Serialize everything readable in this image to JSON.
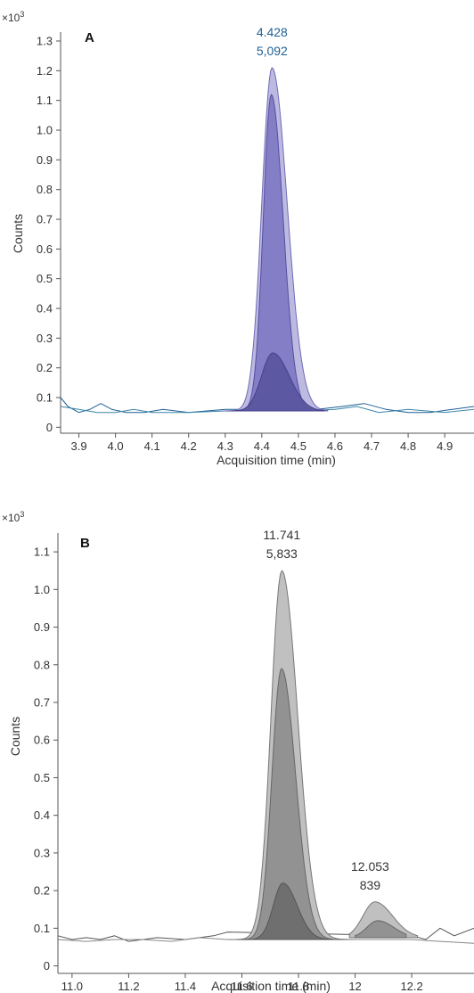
{
  "chart_data": [
    {
      "type": "line",
      "panel_label": "A",
      "multiplier": "×10",
      "multiplier_exp": "3",
      "xlabel": "Acquisition time (min)",
      "ylabel": "Counts",
      "xlim": [
        3.85,
        4.98
      ],
      "ylim": [
        -0.02,
        1.33
      ],
      "xticks": [
        3.9,
        4.0,
        4.1,
        4.2,
        4.3,
        4.4,
        4.5,
        4.6,
        4.7,
        4.8,
        4.9
      ],
      "xtick_labels": [
        "3.9",
        "4.0",
        "4.1",
        "4.2",
        "4.3",
        "4.4",
        "4.5",
        "4.6",
        "4.7",
        "4.8",
        "4.9"
      ],
      "yticks": [
        0,
        0.1,
        0.2,
        0.3,
        0.4,
        0.5,
        0.6,
        0.7,
        0.8,
        0.9,
        1.0,
        1.1,
        1.2,
        1.3
      ],
      "ytick_labels": [
        "0",
        "0.1",
        "0.2",
        "0.3",
        "0.4",
        "0.5",
        "0.6",
        "0.7",
        "0.8",
        "0.9",
        "1.0",
        "1.1",
        "1.2",
        "1.3"
      ],
      "peak_annotation": {
        "x": 4.428,
        "lines": [
          "4.428",
          "5,092"
        ],
        "color": "#1f5f94"
      },
      "peaks": [
        {
          "center": 4.428,
          "height": 1.21,
          "left": 4.29,
          "right": 4.58,
          "baseline": 0.055,
          "sigma": 0.033,
          "fill": "#b9b6e0",
          "stroke": "#6f6ab8"
        },
        {
          "center": 4.426,
          "height": 1.12,
          "left": 4.31,
          "right": 4.56,
          "baseline": 0.055,
          "sigma": 0.026,
          "fill": "#7f7ac4",
          "stroke": "#55509e"
        },
        {
          "center": 4.43,
          "height": 0.25,
          "left": 4.3,
          "right": 4.57,
          "baseline": 0.055,
          "sigma": 0.036,
          "fill": "#5a569f",
          "stroke": "#45418a"
        }
      ],
      "noise_traces": [
        {
          "color": "#1f5f94",
          "points": [
            [
              3.85,
              0.1
            ],
            [
              3.87,
              0.07
            ],
            [
              3.9,
              0.05
            ],
            [
              3.93,
              0.06
            ],
            [
              3.96,
              0.08
            ],
            [
              3.99,
              0.06
            ],
            [
              4.03,
              0.05
            ],
            [
              4.08,
              0.05
            ],
            [
              4.13,
              0.06
            ],
            [
              4.2,
              0.05
            ],
            [
              4.3,
              0.06
            ],
            [
              4.4,
              0.06
            ],
            [
              4.55,
              0.06
            ],
            [
              4.62,
              0.07
            ],
            [
              4.68,
              0.08
            ],
            [
              4.74,
              0.06
            ],
            [
              4.8,
              0.05
            ],
            [
              4.86,
              0.05
            ],
            [
              4.92,
              0.06
            ],
            [
              4.98,
              0.07
            ]
          ]
        },
        {
          "color": "#3a86a8",
          "points": [
            [
              3.85,
              0.07
            ],
            [
              3.9,
              0.06
            ],
            [
              3.95,
              0.05
            ],
            [
              4.0,
              0.05
            ],
            [
              4.05,
              0.06
            ],
            [
              4.1,
              0.05
            ],
            [
              4.2,
              0.05
            ],
            [
              4.3,
              0.055
            ],
            [
              4.5,
              0.055
            ],
            [
              4.6,
              0.06
            ],
            [
              4.66,
              0.07
            ],
            [
              4.72,
              0.05
            ],
            [
              4.8,
              0.06
            ],
            [
              4.9,
              0.05
            ],
            [
              4.98,
              0.06
            ]
          ]
        }
      ]
    },
    {
      "type": "line",
      "panel_label": "B",
      "multiplier": "×10",
      "multiplier_exp": "3",
      "xlabel": "Acquisition time (min)",
      "ylabel": "Counts",
      "xlim": [
        10.95,
        12.42
      ],
      "ylim": [
        -0.02,
        1.15
      ],
      "xticks": [
        11.0,
        11.2,
        11.4,
        11.6,
        11.8,
        12.0,
        12.2
      ],
      "xtick_labels": [
        "11.0",
        "11.2",
        "11.4",
        "11.6",
        "11.8",
        "12",
        "12.2"
      ],
      "yticks": [
        0,
        0.1,
        0.2,
        0.3,
        0.4,
        0.5,
        0.6,
        0.7,
        0.8,
        0.9,
        1.0,
        1.1
      ],
      "ytick_labels": [
        "0",
        "0.1",
        "0.2",
        "0.3",
        "0.4",
        "0.5",
        "0.6",
        "0.7",
        "0.8",
        "0.9",
        "1.0",
        "1.1"
      ],
      "peak_annotations": [
        {
          "x": 11.741,
          "lines": [
            "11.741",
            "5,833"
          ],
          "color": "#333333"
        },
        {
          "x": 12.053,
          "lines": [
            "12.053",
            "839"
          ],
          "color": "#333333"
        }
      ],
      "peaks": [
        {
          "center": 11.741,
          "height": 1.05,
          "left": 11.55,
          "right": 12.0,
          "baseline": 0.07,
          "sigma": 0.045,
          "fill": "#bdbdbd",
          "stroke": "#777777"
        },
        {
          "center": 11.74,
          "height": 0.79,
          "left": 11.58,
          "right": 11.97,
          "baseline": 0.07,
          "sigma": 0.04,
          "fill": "#8f8f8f",
          "stroke": "#666666"
        },
        {
          "center": 11.745,
          "height": 0.22,
          "left": 11.6,
          "right": 11.92,
          "baseline": 0.07,
          "sigma": 0.04,
          "fill": "#6e6e6e",
          "stroke": "#555555"
        },
        {
          "center": 12.07,
          "height": 0.17,
          "left": 11.98,
          "right": 12.22,
          "baseline": 0.075,
          "sigma": 0.05,
          "fill": "#bdbdbd",
          "stroke": "#777777"
        },
        {
          "center": 12.08,
          "height": 0.12,
          "left": 12.0,
          "right": 12.18,
          "baseline": 0.075,
          "sigma": 0.045,
          "fill": "#8f8f8f",
          "stroke": "#666666"
        }
      ],
      "noise_traces": [
        {
          "color": "#555555",
          "points": [
            [
              10.95,
              0.08
            ],
            [
              11.0,
              0.07
            ],
            [
              11.05,
              0.075
            ],
            [
              11.1,
              0.07
            ],
            [
              11.15,
              0.08
            ],
            [
              11.2,
              0.065
            ],
            [
              11.3,
              0.075
            ],
            [
              11.4,
              0.07
            ],
            [
              11.5,
              0.08
            ],
            [
              11.55,
              0.09
            ],
            [
              12.2,
              0.08
            ],
            [
              12.25,
              0.07
            ],
            [
              12.3,
              0.1
            ],
            [
              12.35,
              0.08
            ],
            [
              12.42,
              0.1
            ]
          ]
        },
        {
          "color": "#888888",
          "points": [
            [
              10.95,
              0.07
            ],
            [
              11.05,
              0.065
            ],
            [
              11.15,
              0.07
            ],
            [
              11.25,
              0.07
            ],
            [
              11.35,
              0.065
            ],
            [
              11.45,
              0.075
            ],
            [
              11.55,
              0.07
            ],
            [
              12.2,
              0.07
            ],
            [
              12.3,
              0.065
            ],
            [
              12.42,
              0.06
            ]
          ]
        }
      ]
    }
  ]
}
